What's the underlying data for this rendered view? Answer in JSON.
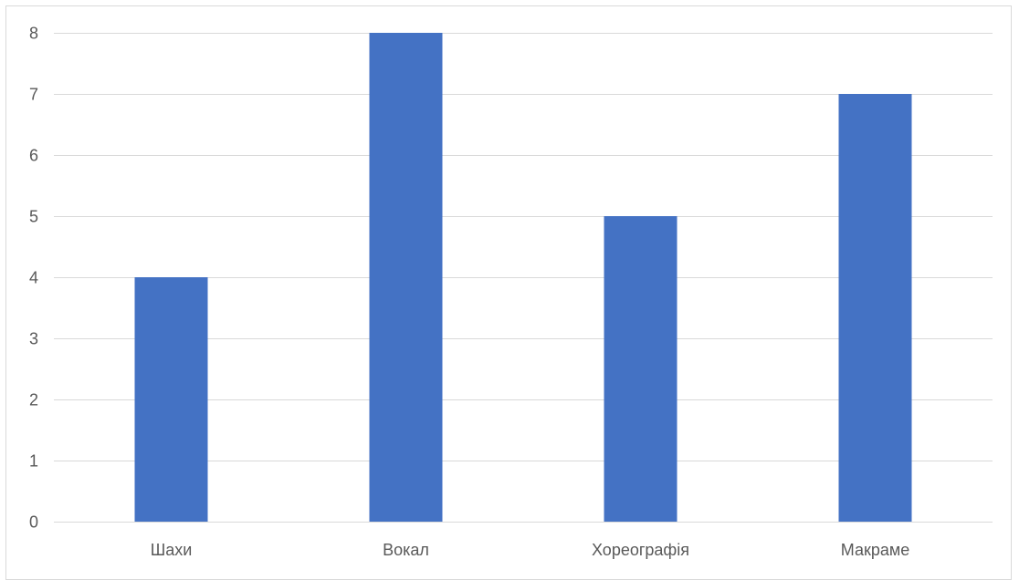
{
  "chart_data": {
    "type": "bar",
    "categories": [
      "Шахи",
      "Вокал",
      "Хореографія",
      "Макраме"
    ],
    "values": [
      4,
      8,
      5,
      7
    ],
    "title": "",
    "xlabel": "",
    "ylabel": "",
    "ylim": [
      0,
      8
    ],
    "yticks": [
      0,
      1,
      2,
      3,
      4,
      5,
      6,
      7,
      8
    ],
    "grid": true,
    "legend": "none",
    "bar_color": "#4472c4"
  }
}
